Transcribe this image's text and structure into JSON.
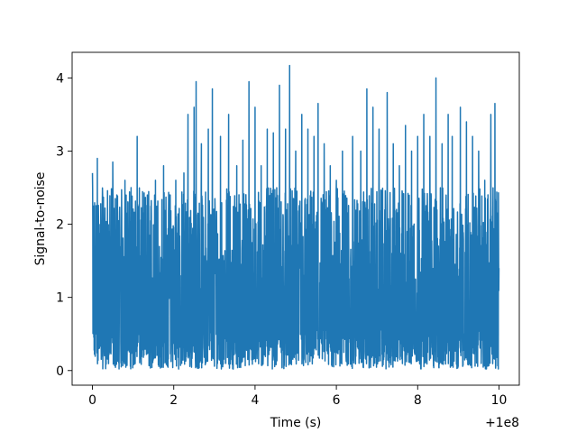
{
  "chart_data": {
    "type": "line",
    "title": "",
    "xlabel": "Time (s)",
    "ylabel": "Signal-to-noise",
    "x_offset_label": "+1e8",
    "xlim": [
      -0.5,
      10.5
    ],
    "ylim": [
      -0.2,
      4.35
    ],
    "x_ticks": [
      0,
      2,
      4,
      6,
      8,
      10
    ],
    "x_tick_labels": [
      "0",
      "2",
      "4",
      "6",
      "8",
      "10"
    ],
    "y_ticks": [
      0,
      1,
      2,
      3,
      4
    ],
    "y_tick_labels": [
      "0",
      "1",
      "2",
      "3",
      "4"
    ],
    "grid": false,
    "legend": "none",
    "series_color": "#1f77b4",
    "series": [
      {
        "x_range": [
          0,
          10
        ],
        "y_range": [
          0.02,
          4.17
        ],
        "y_typical": [
          0.3,
          2.3
        ],
        "peaks": [
          [
            0.0,
            2.7
          ],
          [
            0.12,
            2.9
          ],
          [
            0.25,
            2.4
          ],
          [
            0.5,
            2.85
          ],
          [
            0.6,
            2.4
          ],
          [
            0.8,
            2.6
          ],
          [
            0.95,
            2.5
          ],
          [
            1.1,
            3.2
          ],
          [
            1.35,
            2.4
          ],
          [
            1.55,
            2.6
          ],
          [
            1.75,
            2.8
          ],
          [
            1.9,
            2.4
          ],
          [
            2.05,
            2.6
          ],
          [
            2.25,
            2.7
          ],
          [
            2.35,
            3.5
          ],
          [
            2.5,
            3.6
          ],
          [
            2.55,
            3.95
          ],
          [
            2.68,
            3.1
          ],
          [
            2.85,
            3.3
          ],
          [
            2.95,
            3.85
          ],
          [
            3.15,
            3.2
          ],
          [
            3.35,
            3.5
          ],
          [
            3.55,
            2.8
          ],
          [
            3.7,
            3.15
          ],
          [
            3.85,
            3.95
          ],
          [
            4.0,
            3.6
          ],
          [
            4.15,
            2.8
          ],
          [
            4.3,
            3.3
          ],
          [
            4.45,
            3.25
          ],
          [
            4.6,
            3.9
          ],
          [
            4.75,
            3.3
          ],
          [
            4.85,
            4.17
          ],
          [
            5.0,
            3.0
          ],
          [
            5.15,
            3.5
          ],
          [
            5.3,
            3.3
          ],
          [
            5.45,
            3.2
          ],
          [
            5.55,
            3.65
          ],
          [
            5.7,
            3.1
          ],
          [
            5.85,
            2.8
          ],
          [
            6.0,
            2.6
          ],
          [
            6.15,
            3.0
          ],
          [
            6.4,
            3.2
          ],
          [
            6.6,
            3.0
          ],
          [
            6.75,
            3.85
          ],
          [
            6.9,
            3.6
          ],
          [
            7.05,
            3.3
          ],
          [
            7.25,
            3.8
          ],
          [
            7.4,
            3.1
          ],
          [
            7.55,
            2.8
          ],
          [
            7.7,
            3.35
          ],
          [
            7.85,
            3.0
          ],
          [
            8.0,
            3.2
          ],
          [
            8.15,
            3.5
          ],
          [
            8.3,
            3.2
          ],
          [
            8.45,
            4.0
          ],
          [
            8.6,
            3.1
          ],
          [
            8.75,
            3.5
          ],
          [
            8.85,
            3.2
          ],
          [
            9.05,
            3.6
          ],
          [
            9.2,
            3.4
          ],
          [
            9.35,
            3.2
          ],
          [
            9.5,
            3.0
          ],
          [
            9.65,
            2.6
          ],
          [
            9.8,
            3.5
          ],
          [
            9.9,
            3.65
          ],
          [
            10.0,
            1.4
          ]
        ]
      }
    ]
  }
}
